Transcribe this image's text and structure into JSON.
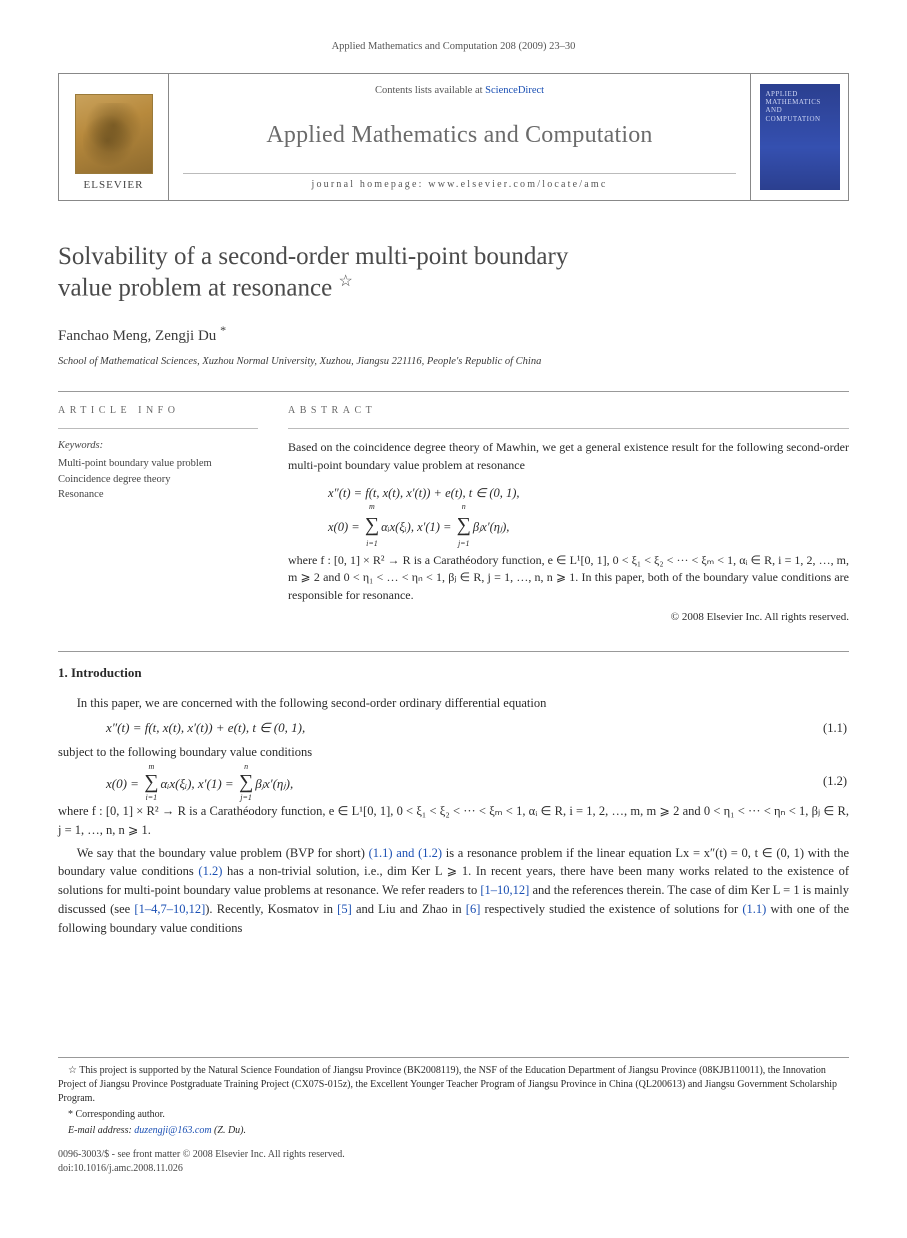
{
  "running_head": "Applied Mathematics and Computation 208 (2009) 23–30",
  "masthead": {
    "contents_prefix": "Contents lists available at ",
    "contents_link": "ScienceDirect",
    "journal_name": "Applied Mathematics and Computation",
    "homepage": "journal homepage: www.elsevier.com/locate/amc",
    "publisher": "ELSEVIER",
    "cover_line1": "APPLIED",
    "cover_line2": "MATHEMATICS",
    "cover_line3": "AND",
    "cover_line4": "COMPUTATION"
  },
  "title_line1": "Solvability of a second-order multi-point boundary",
  "title_line2": "value problem at resonance",
  "star": "☆",
  "authors": "Fanchao Meng, Zengji Du",
  "corr_mark": "*",
  "affiliation": "School of Mathematical Sciences, Xuzhou Normal University, Xuzhou, Jiangsu 221116, People's Republic of China",
  "info_head": "article info",
  "abs_head": "abstract",
  "keywords_title": "Keywords:",
  "keywords": [
    "Multi-point boundary value problem",
    "Coincidence degree theory",
    "Resonance"
  ],
  "abstract_p1": "Based on the coincidence degree theory of Mawhin, we get a general existence result for the following second-order multi-point boundary value problem at resonance",
  "abstract_eq1": "x″(t) = f(t, x(t), x′(t)) + e(t),    t ∈ (0, 1),",
  "abstract_eq2_lhs": "x(0) = ",
  "abstract_eq2_sum_top": "m",
  "abstract_eq2_sum_bot": "i=1",
  "abstract_eq2_mid": "αᵢx(ξᵢ),    x′(1) = ",
  "abstract_eq2_sum2_top": "n",
  "abstract_eq2_sum2_bot": "j=1",
  "abstract_eq2_rhs": "βⱼx′(ηⱼ),",
  "abstract_p2": "where f : [0, 1] × R² → R is a Carathéodory function, e ∈ L¹[0, 1], 0 < ξ₁ < ξ₂ < ··· < ξₘ < 1, αᵢ ∈ R, i = 1, 2, …, m, m ⩾ 2 and 0 < η₁ < … < ηₙ < 1, βⱼ ∈ R, j = 1, …, n, n ⩾ 1. In this paper, both of the boundary value conditions are responsible for resonance.",
  "abstract_cr": "© 2008 Elsevier Inc. All rights reserved.",
  "sec1_num": "1.",
  "sec1_title": "Introduction",
  "intro_p1": "In this paper, we are concerned with the following second-order ordinary differential equation",
  "eq11": "x″(t) = f(t, x(t), x′(t)) + e(t),    t ∈ (0, 1),",
  "eq11_no": "(1.1)",
  "intro_p2": "subject to the following boundary value conditions",
  "eq12_lhs": "x(0) = ",
  "eq12_sum1_top": "m",
  "eq12_sum1_bot": "i=1",
  "eq12_mid": "αᵢx(ξᵢ),    x′(1) = ",
  "eq12_sum2_top": "n",
  "eq12_sum2_bot": "j=1",
  "eq12_rhs": "βⱼx′(ηⱼ),",
  "eq12_no": "(1.2)",
  "intro_p3_a": "where f : [0, 1] × R² → R is a Carathéodory function, e ∈ L¹[0, 1], 0 < ξ₁ < ξ₂ < ··· < ξₘ < 1, αᵢ ∈ R, i = 1, 2, …, m, m ⩾ 2 and 0 < η₁ < ··· < ηₙ < 1, βⱼ ∈ R, j = 1, …, n, n ⩾ 1.",
  "intro_p4_a": "We say that the boundary value problem (BVP for short) ",
  "intro_p4_link1": "(1.1) and (1.2)",
  "intro_p4_b": " is a resonance problem if the linear equation Lx = x″(t) = 0, t ∈ (0, 1) with the boundary value conditions ",
  "intro_p4_link2": "(1.2)",
  "intro_p4_c": " has a non-trivial solution, i.e., dim Ker L ⩾ 1. In recent years, there have been many works related to the existence of solutions for multi-point boundary value problems at resonance. We refer readers to ",
  "intro_p4_link3": "[1–10,12]",
  "intro_p4_d": " and the references therein. The case of dim Ker L = 1 is mainly discussed (see ",
  "intro_p4_link4": "[1–4,7–10,12]",
  "intro_p4_e": "). Recently, Kosmatov in ",
  "intro_p4_link5": "[5]",
  "intro_p4_f": " and Liu and Zhao in ",
  "intro_p4_link6": "[6]",
  "intro_p4_g": " respectively studied the existence of solutions for ",
  "intro_p4_link7": "(1.1)",
  "intro_p4_h": " with one of the following boundary value conditions",
  "fn_funding": "This project is supported by the Natural Science Foundation of Jiangsu Province (BK2008119), the NSF of the Education Department of Jiangsu Province (08KJB110011), the Innovation Project of Jiangsu Province Postgraduate Training Project (CX07S-015z), the Excellent Younger Teacher Program of Jiangsu Province in China (QL200613) and Jiangsu Government Scholarship Program.",
  "fn_corr": "Corresponding author.",
  "fn_email_label": "E-mail address: ",
  "fn_email": "duzengji@163.com",
  "fn_email_suffix": " (Z. Du).",
  "cr_line1": "0096-3003/$ - see front matter © 2008 Elsevier Inc. All rights reserved.",
  "cr_line2": "doi:10.1016/j.amc.2008.11.026",
  "colors": {
    "link": "#1a4fb3",
    "heading_grey": "#4a4a4a",
    "rule": "#999999",
    "text": "#2a2a2a"
  }
}
